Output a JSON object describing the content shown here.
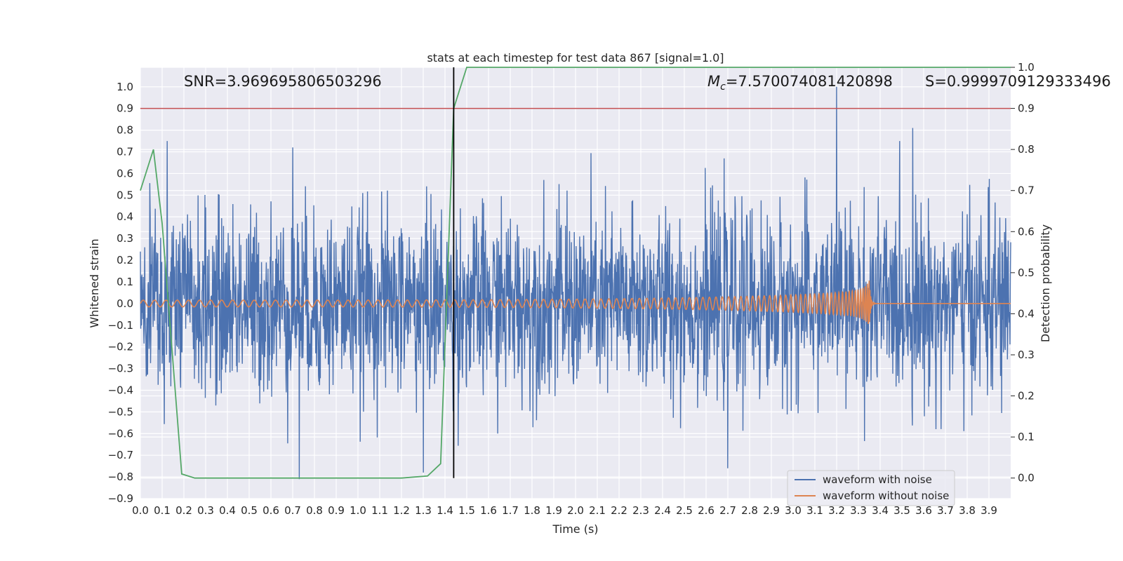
{
  "chart_data": {
    "type": "line",
    "title": "stats at each timestep for test data 867 [signal=1.0]",
    "xlabel": "Time (s)",
    "ylabel": "Whitened strain",
    "y2label": "Detection probability",
    "xlim": [
      0.0,
      4.0
    ],
    "ylim": [
      -0.9,
      1.09
    ],
    "y2lim": [
      -0.05,
      1.0
    ],
    "x_ticks": [
      0.0,
      0.1,
      0.2,
      0.3,
      0.4,
      0.5,
      0.6,
      0.7,
      0.8,
      0.9,
      1.0,
      1.1,
      1.2,
      1.3,
      1.4,
      1.5,
      1.6,
      1.7,
      1.8,
      1.9,
      2.0,
      2.1,
      2.2,
      2.3,
      2.4,
      2.5,
      2.6,
      2.7,
      2.8,
      2.9,
      3.0,
      3.1,
      3.2,
      3.3,
      3.4,
      3.5,
      3.6,
      3.7,
      3.8,
      3.9
    ],
    "x_tick_labels": [
      "0.0",
      "0.1",
      "0.2",
      "0.3",
      "0.4",
      "0.5",
      "0.6",
      "0.7",
      "0.8",
      "0.9",
      "1.0",
      "1.1",
      "1.2",
      "1.3",
      "1.4",
      "1.5",
      "1.6",
      "1.7",
      "1.8",
      "1.9",
      "2.0",
      "2.1",
      "2.2",
      "2.3",
      "2.4",
      "2.5",
      "2.6",
      "2.7",
      "2.8",
      "2.9",
      "3.0",
      "3.1",
      "3.2",
      "3.3",
      "3.4",
      "3.5",
      "3.6",
      "3.7",
      "3.8",
      "3.9"
    ],
    "y_ticks": [
      -0.9,
      -0.8,
      -0.7,
      -0.6,
      -0.5,
      -0.4,
      -0.3,
      -0.2,
      -0.1,
      0.0,
      0.1,
      0.2,
      0.3,
      0.4,
      0.5,
      0.6,
      0.7,
      0.8,
      0.9,
      1.0
    ],
    "y_tick_labels": [
      "−0.9",
      "−0.8",
      "−0.7",
      "−0.6",
      "−0.5",
      "−0.4",
      "−0.3",
      "−0.2",
      "−0.1",
      "0.0",
      "0.1",
      "0.2",
      "0.3",
      "0.4",
      "0.5",
      "0.6",
      "0.7",
      "0.8",
      "0.9",
      "1.0"
    ],
    "y2_ticks": [
      0.0,
      0.1,
      0.2,
      0.3,
      0.4,
      0.5,
      0.6,
      0.7,
      0.8,
      0.9,
      1.0
    ],
    "y2_tick_labels": [
      "0.0",
      "0.1",
      "0.2",
      "0.3",
      "0.4",
      "0.5",
      "0.6",
      "0.7",
      "0.8",
      "0.9",
      "1.0"
    ],
    "grid": true,
    "legend_position": "lower-right",
    "annotations": {
      "snr": "SNR=3.969695806503296",
      "mc_symbol": "M",
      "mc_sub": "c",
      "mc_value": "=7.570074081420898",
      "s": "S=0.9999709129333496"
    },
    "series": [
      {
        "name": "waveform with noise",
        "color": "#4c72b0",
        "kind": "noise",
        "x_range": [
          0.0,
          4.0
        ],
        "amplitude_envelope": [
          -0.81,
          1.0
        ],
        "peak_points": [
          {
            "x": 0.7,
            "y": 0.72
          },
          {
            "x": 0.73,
            "y": -0.81
          },
          {
            "x": 1.3,
            "y": -0.78
          },
          {
            "x": 2.7,
            "y": -0.76
          },
          {
            "x": 3.2,
            "y": 1.0
          },
          {
            "x": 3.55,
            "y": 0.81
          }
        ]
      },
      {
        "name": "waveform without noise",
        "color": "#dd8452",
        "kind": "chirp",
        "start_x": 0.0,
        "merger_x": 3.35,
        "start_amplitude": 0.015,
        "merger_amplitude": 0.11
      },
      {
        "name": "",
        "color": "#55a868",
        "axis": "y2",
        "x": [
          0.0,
          0.06,
          0.1,
          0.19,
          0.25,
          0.4,
          0.8,
          1.2,
          1.32,
          1.38,
          1.44,
          1.5,
          4.0
        ],
        "y": [
          0.7,
          0.8,
          0.62,
          0.01,
          0.0,
          0.0,
          0.0,
          0.0,
          0.005,
          0.035,
          0.9,
          1.0,
          1.0
        ]
      }
    ],
    "hlines": [
      {
        "axis": "y2",
        "value": 0.9,
        "color": "#c44e52"
      }
    ],
    "vlines": [
      {
        "x": 1.44,
        "color": "#000000",
        "ymin_y2": 0.0,
        "ymax_y2": 1.0
      }
    ]
  }
}
